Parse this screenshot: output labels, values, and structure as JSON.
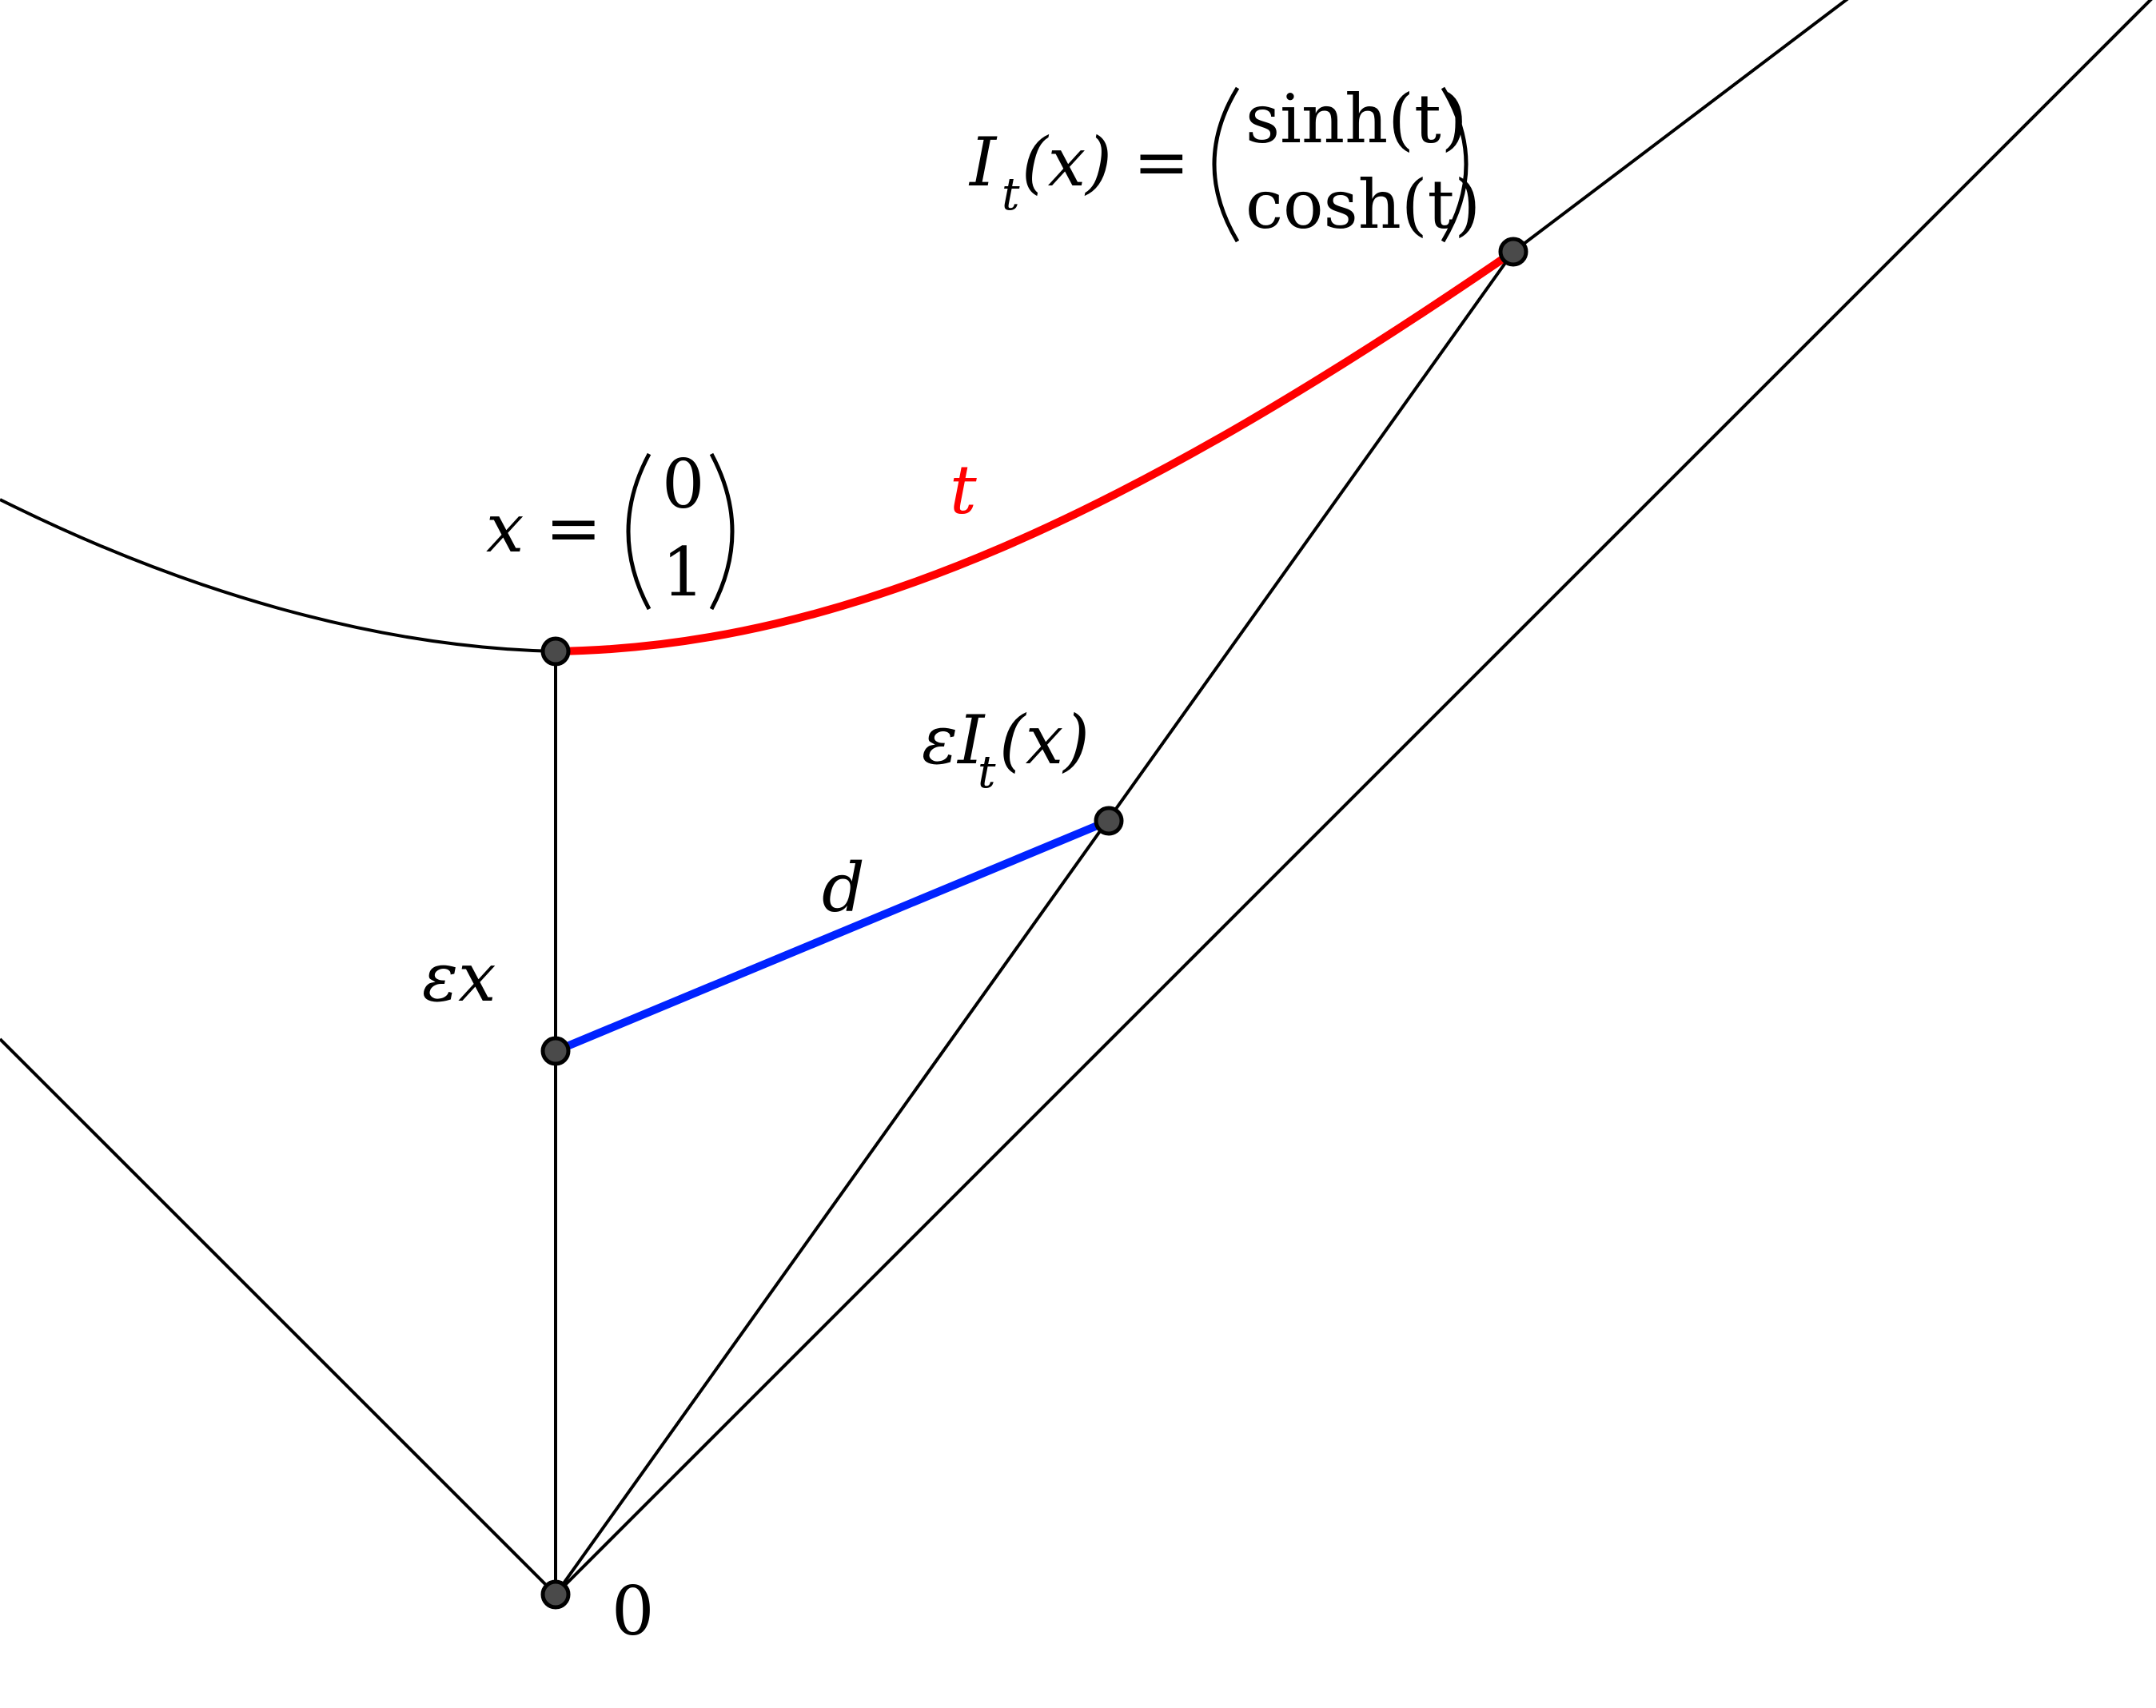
{
  "labels": {
    "origin": "0",
    "eps_x": "εx",
    "d": "d",
    "t": "t",
    "eps_It_main": "εI",
    "eps_It_sub": "t",
    "eps_It_arg": "(x)",
    "x_eq": "x =",
    "x_vec_top": "0",
    "x_vec_bot": "1",
    "It_main": "I",
    "It_sub": "t",
    "It_arg": "(x) =",
    "It_vec_top": "sinh(t)",
    "It_vec_bot": "cosh(t)"
  },
  "colors": {
    "t_arc": "#ff0000",
    "d_segment": "#0022ff",
    "lines": "#000000"
  }
}
